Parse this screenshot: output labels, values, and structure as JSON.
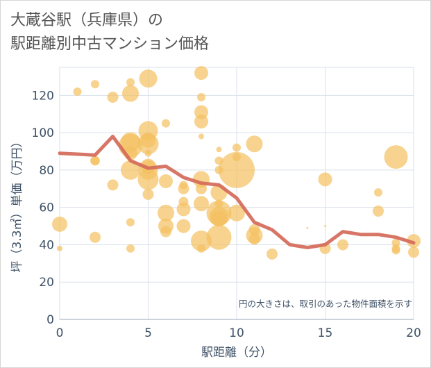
{
  "title": {
    "line1": "大蔵谷駅（兵庫県）の",
    "line2": "駅距離別中古マンション価格"
  },
  "colors": {
    "bubble": "#f3c15f",
    "line": "#d46a5a",
    "grid": "#d9e0ea",
    "axis_text": "#3d5066"
  },
  "chart_data": {
    "type": "scatter",
    "xlabel": "駅距離（分）",
    "ylabel": "坪（3.3㎡）単価（万円）",
    "xlim": [
      0,
      20
    ],
    "ylim": [
      0,
      135
    ],
    "xticks": [
      "0",
      "5",
      "10",
      "15",
      "20"
    ],
    "yticks": [
      "0",
      "20",
      "40",
      "60",
      "80",
      "100",
      "120"
    ],
    "note": "円の大きさは、取引のあった物件面積を示す",
    "bubbles": [
      {
        "x": 0,
        "y": 51,
        "r": 11
      },
      {
        "x": 0,
        "y": 38,
        "r": 4
      },
      {
        "x": 1,
        "y": 122,
        "r": 6
      },
      {
        "x": 2,
        "y": 126,
        "r": 6
      },
      {
        "x": 2,
        "y": 85,
        "r": 7
      },
      {
        "x": 2,
        "y": 85,
        "r": 6
      },
      {
        "x": 2,
        "y": 44,
        "r": 8
      },
      {
        "x": 3,
        "y": 119,
        "r": 8
      },
      {
        "x": 3,
        "y": 72,
        "r": 8
      },
      {
        "x": 4,
        "y": 127,
        "r": 6
      },
      {
        "x": 4,
        "y": 121,
        "r": 12
      },
      {
        "x": 4,
        "y": 95,
        "r": 14
      },
      {
        "x": 4,
        "y": 93,
        "r": 17
      },
      {
        "x": 4,
        "y": 89,
        "r": 10
      },
      {
        "x": 4,
        "y": 80,
        "r": 14
      },
      {
        "x": 4,
        "y": 52,
        "r": 6
      },
      {
        "x": 4,
        "y": 38,
        "r": 6
      },
      {
        "x": 5,
        "y": 129,
        "r": 13
      },
      {
        "x": 5,
        "y": 101,
        "r": 14
      },
      {
        "x": 5,
        "y": 96,
        "r": 11
      },
      {
        "x": 5,
        "y": 94,
        "r": 15
      },
      {
        "x": 5,
        "y": 89,
        "r": 5
      },
      {
        "x": 5,
        "y": 82,
        "r": 11
      },
      {
        "x": 5,
        "y": 80,
        "r": 14
      },
      {
        "x": 5,
        "y": 75,
        "r": 15
      },
      {
        "x": 5,
        "y": 67,
        "r": 8
      },
      {
        "x": 6,
        "y": 105,
        "r": 6
      },
      {
        "x": 6,
        "y": 74,
        "r": 10
      },
      {
        "x": 6,
        "y": 57,
        "r": 12
      },
      {
        "x": 6,
        "y": 50,
        "r": 11
      },
      {
        "x": 6,
        "y": 47,
        "r": 8
      },
      {
        "x": 7,
        "y": 72,
        "r": 6
      },
      {
        "x": 7,
        "y": 70,
        "r": 8
      },
      {
        "x": 7,
        "y": 63,
        "r": 7
      },
      {
        "x": 7,
        "y": 59,
        "r": 10
      },
      {
        "x": 7,
        "y": 50,
        "r": 10
      },
      {
        "x": 8,
        "y": 132,
        "r": 10
      },
      {
        "x": 8,
        "y": 119,
        "r": 6
      },
      {
        "x": 8,
        "y": 111,
        "r": 10
      },
      {
        "x": 8,
        "y": 106,
        "r": 10
      },
      {
        "x": 8,
        "y": 98,
        "r": 4
      },
      {
        "x": 8,
        "y": 75,
        "r": 12
      },
      {
        "x": 8,
        "y": 70,
        "r": 8
      },
      {
        "x": 8,
        "y": 62,
        "r": 11
      },
      {
        "x": 8,
        "y": 42,
        "r": 15
      },
      {
        "x": 8,
        "y": 38,
        "r": 6
      },
      {
        "x": 9,
        "y": 91,
        "r": 4
      },
      {
        "x": 9,
        "y": 85,
        "r": 6
      },
      {
        "x": 9,
        "y": 80,
        "r": 6
      },
      {
        "x": 9,
        "y": 68,
        "r": 12
      },
      {
        "x": 9,
        "y": 62,
        "r": 6
      },
      {
        "x": 9,
        "y": 57,
        "r": 18
      },
      {
        "x": 9,
        "y": 55,
        "r": 14
      },
      {
        "x": 9,
        "y": 54,
        "r": 11
      },
      {
        "x": 9,
        "y": 44,
        "r": 18
      },
      {
        "x": 10,
        "y": 92,
        "r": 6
      },
      {
        "x": 10,
        "y": 87,
        "r": 6
      },
      {
        "x": 10,
        "y": 80,
        "r": 26
      },
      {
        "x": 10,
        "y": 57,
        "r": 12
      },
      {
        "x": 11,
        "y": 94,
        "r": 12
      },
      {
        "x": 11,
        "y": 48,
        "r": 8
      },
      {
        "x": 11,
        "y": 45,
        "r": 12
      },
      {
        "x": 11,
        "y": 43,
        "r": 8
      },
      {
        "x": 12,
        "y": 35,
        "r": 8
      },
      {
        "x": 14,
        "y": 49,
        "r": 1.5
      },
      {
        "x": 15,
        "y": 75,
        "r": 10
      },
      {
        "x": 15,
        "y": 50,
        "r": 1.5
      },
      {
        "x": 15,
        "y": 38,
        "r": 8
      },
      {
        "x": 16,
        "y": 40,
        "r": 8
      },
      {
        "x": 18,
        "y": 68,
        "r": 6
      },
      {
        "x": 18,
        "y": 58,
        "r": 8
      },
      {
        "x": 19,
        "y": 87,
        "r": 17
      },
      {
        "x": 19,
        "y": 41,
        "r": 6
      },
      {
        "x": 19,
        "y": 38,
        "r": 6
      },
      {
        "x": 19,
        "y": 37,
        "r": 6
      },
      {
        "x": 20,
        "y": 42,
        "r": 10
      },
      {
        "x": 20,
        "y": 36,
        "r": 8
      }
    ],
    "line": {
      "x": [
        0,
        1,
        2,
        3,
        4,
        5,
        6,
        7,
        8,
        9,
        10,
        11,
        12,
        13,
        14,
        15,
        16,
        17,
        18,
        19,
        20
      ],
      "y": [
        89,
        88.5,
        88,
        98,
        85,
        81,
        82,
        76,
        73,
        72,
        65,
        52,
        48,
        40,
        38.5,
        40,
        47,
        45.5,
        45.5,
        44,
        41
      ]
    }
  }
}
